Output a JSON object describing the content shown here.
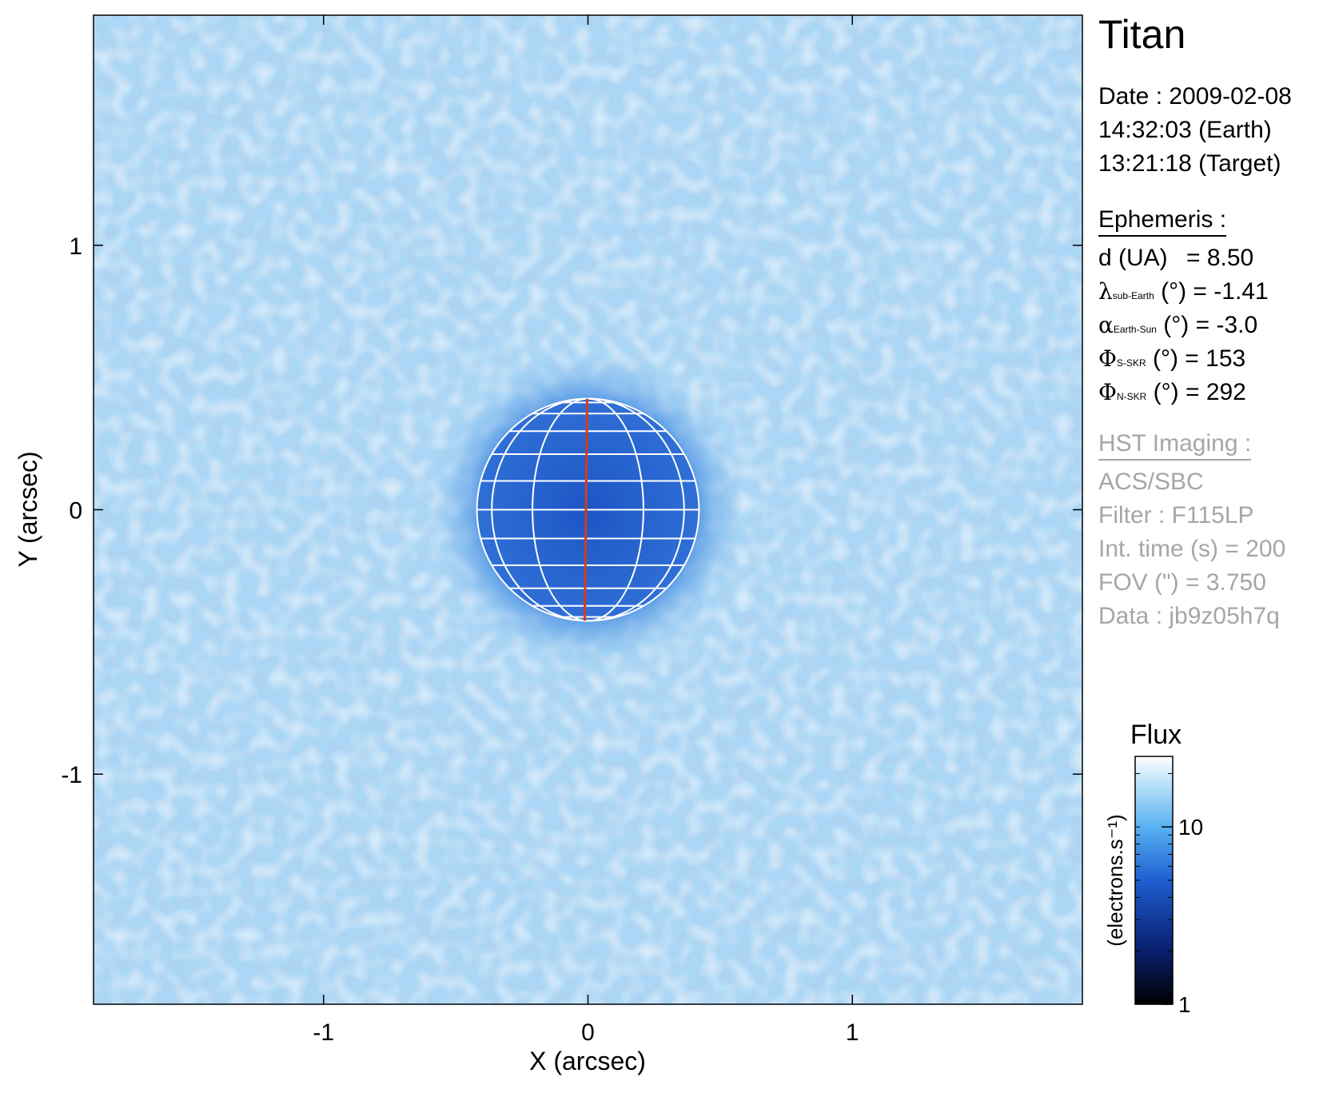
{
  "target": "Titan",
  "date": {
    "date_line": "Date : 2009-02-08",
    "earth_line": "14:32:03 (Earth)",
    "target_line": "13:21:18 (Target)"
  },
  "ephemeris": {
    "header": "Ephemeris :",
    "rows": [
      {
        "sym": "",
        "label": "d (UA)",
        "sub": "",
        "unit": "",
        "value": "= 8.50"
      },
      {
        "sym": "λ",
        "label": "",
        "sub": "sub-Earth",
        "unit": " (°)",
        "value": "= -1.41"
      },
      {
        "sym": "α",
        "label": "",
        "sub": "Earth-Sun",
        "unit": " (°)",
        "value": "= -3.0"
      },
      {
        "sym": "Φ",
        "label": "",
        "sub": "S-SKR",
        "unit": " (°)",
        "value": "= 153"
      },
      {
        "sym": "Φ",
        "label": "",
        "sub": "N-SKR",
        "unit": " (°)",
        "value": "= 292"
      }
    ]
  },
  "hst": {
    "header": "HST Imaging :",
    "lines": [
      "ACS/SBC",
      "Filter : F115LP",
      "Int. time (s) = 200",
      "FOV (\") = 3.750",
      "Data : jb9z05h7q"
    ]
  },
  "colors": {
    "background_light": "#bfe4fb",
    "background_mid": "#8fcaf2",
    "disk": "#2f6fd6",
    "disk_dark": "#1d55c4",
    "grid": "#ffffff",
    "meridian": "#d23c1e",
    "info_grey": "#a6a6a6"
  },
  "chart_data": {
    "type": "heatmap",
    "xlabel": "X (arcsec)",
    "ylabel": "Y (arcsec)",
    "xlim": [
      -1.87,
      1.87
    ],
    "ylim": [
      -1.87,
      1.87
    ],
    "xticks": [
      -1,
      0,
      1
    ],
    "yticks": [
      -1,
      0,
      1
    ],
    "planet": {
      "center": [
        0,
        0
      ],
      "radius": 0.42,
      "grid": true,
      "meridian_color": "#d23c1e"
    },
    "colorbar": {
      "title": "Flux",
      "label": "(electrons.s⁻¹)",
      "scale": "log",
      "range": [
        1,
        25
      ],
      "ticks": [
        1,
        10
      ],
      "colors": [
        "#000000",
        "#0a1f6e",
        "#1e5fd0",
        "#5ab3f2",
        "#bfe4fb",
        "#ffffff"
      ]
    }
  }
}
